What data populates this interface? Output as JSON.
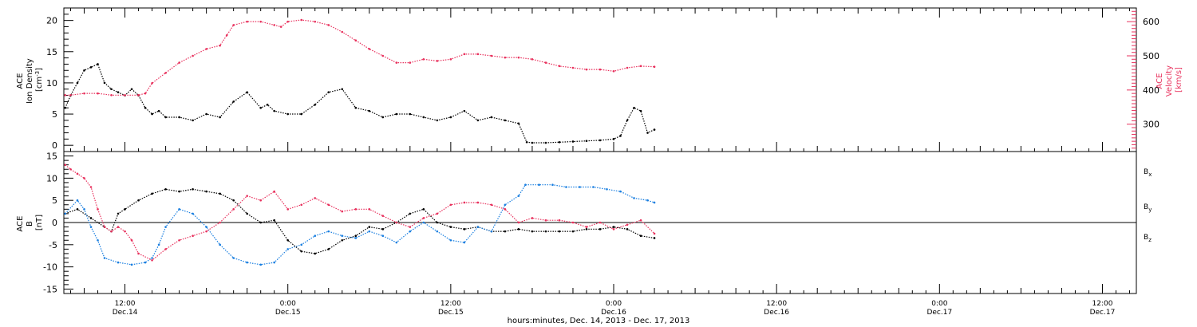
{
  "colors": {
    "black": "#000000",
    "blue": "#1a7fe0",
    "pink": "#e8315d"
  },
  "x_axis": {
    "label": "hours:minutes, Dec. 14, 2013 - Dec. 17, 2013",
    "ticks": [
      {
        "t": 12,
        "time": "12:00",
        "date": "Dec.14"
      },
      {
        "t": 24,
        "time": "0:00",
        "date": "Dec.15"
      },
      {
        "t": 36,
        "time": "12:00",
        "date": "Dec.15"
      },
      {
        "t": 48,
        "time": "0:00",
        "date": "Dec.16"
      },
      {
        "t": 60,
        "time": "12:00",
        "date": "Dec.16"
      },
      {
        "t": 72,
        "time": "0:00",
        "date": "Dec.17"
      },
      {
        "t": 84,
        "time": "12:00",
        "date": "Dec.17"
      }
    ]
  },
  "chart_data": [
    {
      "type": "scatter",
      "panel": "top",
      "xlabel": "hours:minutes, Dec. 14, 2013 - Dec. 17, 2013",
      "xlim": [
        7.5,
        86.5
      ],
      "left_axis": {
        "label_lines": [
          "ACE",
          "Ion Density",
          "[cm^-3]"
        ],
        "label_main": [
          "ACE",
          "Ion Density"
        ],
        "label_unit": "[cm",
        "label_unit_sup": "-3",
        "label_unit_close": "]",
        "ylim": [
          -1,
          22
        ],
        "ticks": [
          "0",
          "5",
          "10",
          "15",
          "20"
        ]
      },
      "right_axis": {
        "label_lines": [
          "ACE",
          "Velocity",
          "[km/s]"
        ],
        "ylim": [
          220,
          640
        ],
        "ticks": [
          "300",
          "400",
          "500",
          "600"
        ]
      },
      "series": [
        {
          "name": "Ion Density",
          "color": "#000000",
          "axis": "left",
          "points": [
            [
              7.6,
              6.0
            ],
            [
              8.0,
              8.0
            ],
            [
              8.5,
              10.0
            ],
            [
              9.0,
              12.0
            ],
            [
              9.5,
              12.5
            ],
            [
              10.0,
              13.0
            ],
            [
              10.5,
              10.0
            ],
            [
              11.0,
              9.0
            ],
            [
              11.5,
              8.5
            ],
            [
              12.0,
              8.0
            ],
            [
              12.5,
              9.0
            ],
            [
              13.0,
              8.0
            ],
            [
              13.5,
              6.0
            ],
            [
              14.0,
              5.0
            ],
            [
              14.5,
              5.5
            ],
            [
              15.0,
              4.5
            ],
            [
              16.0,
              4.5
            ],
            [
              17.0,
              4.0
            ],
            [
              18.0,
              5.0
            ],
            [
              19.0,
              4.5
            ],
            [
              20.0,
              7.0
            ],
            [
              21.0,
              8.5
            ],
            [
              22.0,
              6.0
            ],
            [
              22.5,
              6.5
            ],
            [
              23.0,
              5.5
            ],
            [
              24.0,
              5.0
            ],
            [
              25.0,
              5.0
            ],
            [
              26.0,
              6.5
            ],
            [
              27.0,
              8.5
            ],
            [
              28.0,
              9.0
            ],
            [
              29.0,
              6.0
            ],
            [
              30.0,
              5.5
            ],
            [
              31.0,
              4.5
            ],
            [
              32.0,
              5.0
            ],
            [
              33.0,
              5.0
            ],
            [
              34.0,
              4.5
            ],
            [
              35.0,
              4.0
            ],
            [
              36.0,
              4.5
            ],
            [
              37.0,
              5.5
            ],
            [
              38.0,
              4.0
            ],
            [
              39.0,
              4.5
            ],
            [
              40.0,
              4.0
            ],
            [
              41.0,
              3.5
            ],
            [
              41.6,
              0.5
            ],
            [
              42.0,
              0.4
            ],
            [
              43.0,
              0.4
            ],
            [
              44.0,
              0.5
            ],
            [
              45.0,
              0.6
            ],
            [
              46.0,
              0.7
            ],
            [
              47.0,
              0.8
            ],
            [
              48.0,
              1.0
            ],
            [
              48.5,
              1.5
            ],
            [
              49.0,
              4.0
            ],
            [
              49.5,
              6.0
            ],
            [
              50.0,
              5.5
            ],
            [
              50.5,
              2.0
            ],
            [
              51.0,
              2.5
            ]
          ]
        },
        {
          "name": "Velocity",
          "color": "#e8315d",
          "axis": "right",
          "points": [
            [
              7.6,
              385
            ],
            [
              8.0,
              385
            ],
            [
              9.0,
              390
            ],
            [
              10.0,
              390
            ],
            [
              11.0,
              385
            ],
            [
              12.0,
              385
            ],
            [
              13.0,
              385
            ],
            [
              13.5,
              390
            ],
            [
              14.0,
              420
            ],
            [
              15.0,
              450
            ],
            [
              16.0,
              480
            ],
            [
              17.0,
              500
            ],
            [
              18.0,
              520
            ],
            [
              19.0,
              530
            ],
            [
              19.5,
              560
            ],
            [
              20.0,
              590
            ],
            [
              21.0,
              600
            ],
            [
              22.0,
              600
            ],
            [
              23.0,
              590
            ],
            [
              23.5,
              585
            ],
            [
              24.0,
              600
            ],
            [
              25.0,
              605
            ],
            [
              26.0,
              600
            ],
            [
              27.0,
              590
            ],
            [
              28.0,
              570
            ],
            [
              29.0,
              545
            ],
            [
              30.0,
              520
            ],
            [
              31.0,
              500
            ],
            [
              32.0,
              480
            ],
            [
              33.0,
              480
            ],
            [
              34.0,
              490
            ],
            [
              35.0,
              485
            ],
            [
              36.0,
              490
            ],
            [
              37.0,
              505
            ],
            [
              38.0,
              505
            ],
            [
              39.0,
              500
            ],
            [
              40.0,
              495
            ],
            [
              41.0,
              495
            ],
            [
              42.0,
              490
            ],
            [
              43.0,
              480
            ],
            [
              44.0,
              470
            ],
            [
              45.0,
              465
            ],
            [
              46.0,
              460
            ],
            [
              47.0,
              460
            ],
            [
              48.0,
              455
            ],
            [
              49.0,
              465
            ],
            [
              50.0,
              470
            ],
            [
              51.0,
              468
            ]
          ]
        }
      ]
    },
    {
      "type": "scatter",
      "panel": "bottom",
      "xlabel": "hours:minutes, Dec. 14, 2013 - Dec. 17, 2013",
      "xlim": [
        7.5,
        86.5
      ],
      "left_axis": {
        "label_lines": [
          "ACE",
          "B",
          "[nT]"
        ],
        "ylim": [
          -16,
          16
        ],
        "ticks": [
          "-15",
          "-10",
          "-5",
          "0",
          "5",
          "10",
          "15"
        ]
      },
      "zero_line": true,
      "series": [
        {
          "name": "B",
          "sub": "x",
          "color": "#000000",
          "points": [
            [
              7.6,
              2.0
            ],
            [
              8.5,
              3.0
            ],
            [
              9.5,
              1.0
            ],
            [
              10.5,
              -1.0
            ],
            [
              11.0,
              -2.0
            ],
            [
              11.5,
              2.0
            ],
            [
              12.0,
              3.0
            ],
            [
              13.0,
              5.0
            ],
            [
              14.0,
              6.5
            ],
            [
              15.0,
              7.5
            ],
            [
              16.0,
              7.0
            ],
            [
              17.0,
              7.5
            ],
            [
              18.0,
              7.0
            ],
            [
              19.0,
              6.5
            ],
            [
              20.0,
              5.0
            ],
            [
              21.0,
              2.0
            ],
            [
              22.0,
              0.0
            ],
            [
              23.0,
              0.5
            ],
            [
              24.0,
              -4.0
            ],
            [
              25.0,
              -6.5
            ],
            [
              26.0,
              -7.0
            ],
            [
              27.0,
              -6.0
            ],
            [
              28.0,
              -4.0
            ],
            [
              29.0,
              -3.0
            ],
            [
              30.0,
              -1.0
            ],
            [
              31.0,
              -1.5
            ],
            [
              32.0,
              0.0
            ],
            [
              33.0,
              2.0
            ],
            [
              34.0,
              3.0
            ],
            [
              35.0,
              0.0
            ],
            [
              36.0,
              -1.0
            ],
            [
              37.0,
              -1.5
            ],
            [
              38.0,
              -1.0
            ],
            [
              39.0,
              -2.0
            ],
            [
              40.0,
              -2.0
            ],
            [
              41.0,
              -1.5
            ],
            [
              42.0,
              -2.0
            ],
            [
              43.0,
              -2.0
            ],
            [
              44.0,
              -2.0
            ],
            [
              45.0,
              -2.0
            ],
            [
              46.0,
              -1.5
            ],
            [
              47.0,
              -1.5
            ],
            [
              48.0,
              -1.0
            ],
            [
              49.0,
              -1.5
            ],
            [
              50.0,
              -3.0
            ],
            [
              51.0,
              -3.5
            ]
          ]
        },
        {
          "name": "B",
          "sub": "y",
          "color": "#1a7fe0",
          "points": [
            [
              7.6,
              2.0
            ],
            [
              8.5,
              5.0
            ],
            [
              9.0,
              3.0
            ],
            [
              9.5,
              -1.0
            ],
            [
              10.0,
              -4.0
            ],
            [
              10.5,
              -8.0
            ],
            [
              11.5,
              -9.0
            ],
            [
              12.5,
              -9.5
            ],
            [
              13.5,
              -9.0
            ],
            [
              14.0,
              -8.0
            ],
            [
              14.5,
              -5.0
            ],
            [
              15.0,
              -1.0
            ],
            [
              16.0,
              3.0
            ],
            [
              17.0,
              2.0
            ],
            [
              18.0,
              -1.0
            ],
            [
              19.0,
              -5.0
            ],
            [
              20.0,
              -8.0
            ],
            [
              21.0,
              -9.0
            ],
            [
              22.0,
              -9.5
            ],
            [
              23.0,
              -9.0
            ],
            [
              24.0,
              -6.0
            ],
            [
              25.0,
              -5.0
            ],
            [
              26.0,
              -3.0
            ],
            [
              27.0,
              -2.0
            ],
            [
              28.0,
              -3.0
            ],
            [
              29.0,
              -3.5
            ],
            [
              30.0,
              -2.0
            ],
            [
              31.0,
              -3.0
            ],
            [
              32.0,
              -4.5
            ],
            [
              33.0,
              -2.0
            ],
            [
              34.0,
              0.0
            ],
            [
              35.0,
              -2.0
            ],
            [
              36.0,
              -4.0
            ],
            [
              37.0,
              -4.5
            ],
            [
              38.0,
              -1.0
            ],
            [
              39.0,
              -2.0
            ],
            [
              40.0,
              4.0
            ],
            [
              41.0,
              6.0
            ],
            [
              41.5,
              8.5
            ],
            [
              42.5,
              8.5
            ],
            [
              43.5,
              8.5
            ],
            [
              44.5,
              8.0
            ],
            [
              45.5,
              8.0
            ],
            [
              46.5,
              8.0
            ],
            [
              47.5,
              7.5
            ],
            [
              48.5,
              7.0
            ],
            [
              49.5,
              5.5
            ],
            [
              50.5,
              5.0
            ],
            [
              51.0,
              4.5
            ]
          ]
        },
        {
          "name": "B",
          "sub": "z",
          "color": "#e8315d",
          "points": [
            [
              7.6,
              13.0
            ],
            [
              8.0,
              12.0
            ],
            [
              8.5,
              11.0
            ],
            [
              9.0,
              10.0
            ],
            [
              9.5,
              8.0
            ],
            [
              10.0,
              3.0
            ],
            [
              10.5,
              -1.0
            ],
            [
              11.0,
              -2.0
            ],
            [
              11.5,
              -1.0
            ],
            [
              12.0,
              -2.0
            ],
            [
              12.5,
              -4.0
            ],
            [
              13.0,
              -7.0
            ],
            [
              14.0,
              -8.5
            ],
            [
              15.0,
              -6.0
            ],
            [
              16.0,
              -4.0
            ],
            [
              17.0,
              -3.0
            ],
            [
              18.0,
              -2.0
            ],
            [
              19.0,
              0.0
            ],
            [
              20.0,
              3.0
            ],
            [
              21.0,
              6.0
            ],
            [
              22.0,
              5.0
            ],
            [
              23.0,
              7.0
            ],
            [
              24.0,
              3.0
            ],
            [
              25.0,
              4.0
            ],
            [
              26.0,
              5.5
            ],
            [
              27.0,
              4.0
            ],
            [
              28.0,
              2.5
            ],
            [
              29.0,
              3.0
            ],
            [
              30.0,
              3.0
            ],
            [
              31.0,
              1.5
            ],
            [
              32.0,
              0.0
            ],
            [
              33.0,
              -1.0
            ],
            [
              34.0,
              1.0
            ],
            [
              35.0,
              2.0
            ],
            [
              36.0,
              4.0
            ],
            [
              37.0,
              4.5
            ],
            [
              38.0,
              4.5
            ],
            [
              39.0,
              4.0
            ],
            [
              40.0,
              3.0
            ],
            [
              41.0,
              0.0
            ],
            [
              42.0,
              1.0
            ],
            [
              43.0,
              0.5
            ],
            [
              44.0,
              0.5
            ],
            [
              45.0,
              0.0
            ],
            [
              46.0,
              -1.0
            ],
            [
              47.0,
              0.0
            ],
            [
              48.0,
              -1.5
            ],
            [
              49.0,
              -0.5
            ],
            [
              50.0,
              0.5
            ],
            [
              51.0,
              -2.5
            ]
          ]
        }
      ]
    }
  ]
}
